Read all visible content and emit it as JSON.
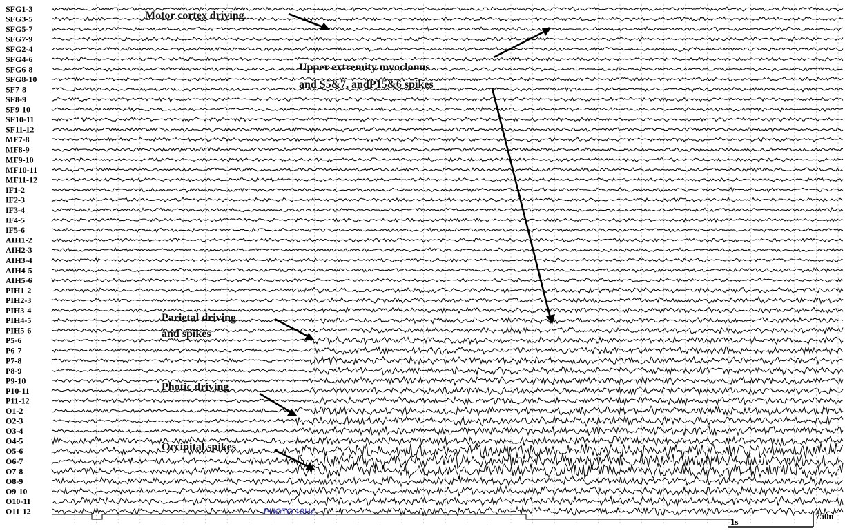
{
  "channels": [
    "SFG1-3",
    "SFG3-5",
    "SFG5-7",
    "SFG7-9",
    "SFG2-4",
    "SFG4-6",
    "SFG6-8",
    "SFG8-10",
    "SF7-8",
    "SF8-9",
    "SF9-10",
    "SF10-11",
    "SF11-12",
    "MF7-8",
    "MF8-9",
    "MF9-10",
    "MF10-11",
    "MF11-12",
    "IF1-2",
    "IF2-3",
    "IF3-4",
    "IF4-5",
    "IF5-6",
    "AIH1-2",
    "AIH2-3",
    "AIH3-4",
    "AIH4-5",
    "AIH5-6",
    "PIH1-2",
    "PIH2-3",
    "PIH3-4",
    "PIH4-5",
    "PIH5-6",
    "P5-6",
    "P6-7",
    "P7-8",
    "P8-9",
    "P9-10",
    "P10-11",
    "P11-12",
    "O1-2",
    "O2-3",
    "O3-4",
    "O4-5",
    "O5-6",
    "O6-7",
    "O7-8",
    "O8-9",
    "O9-10",
    "O10-11",
    "O11-12"
  ],
  "annotations": {
    "motor": "Motor cortex driving",
    "myoclonus_line1": "Upper extremity myoclonus",
    "myoclonus_line2": "and S5&7, andP15&6 spikes",
    "parietal_line1": "Parietal driving",
    "parietal_line2": "and spikes",
    "photic": "Photic driving",
    "occipital": "Occipital spikes"
  },
  "stimulus_label": "PHOTO 18Hz",
  "scale": {
    "time_label": "1s",
    "amplitude_label": "750u"
  },
  "colors": {
    "trace": "#000000",
    "grid": "#bdbdbd",
    "stimulus_text": "#3a3ad0"
  }
}
